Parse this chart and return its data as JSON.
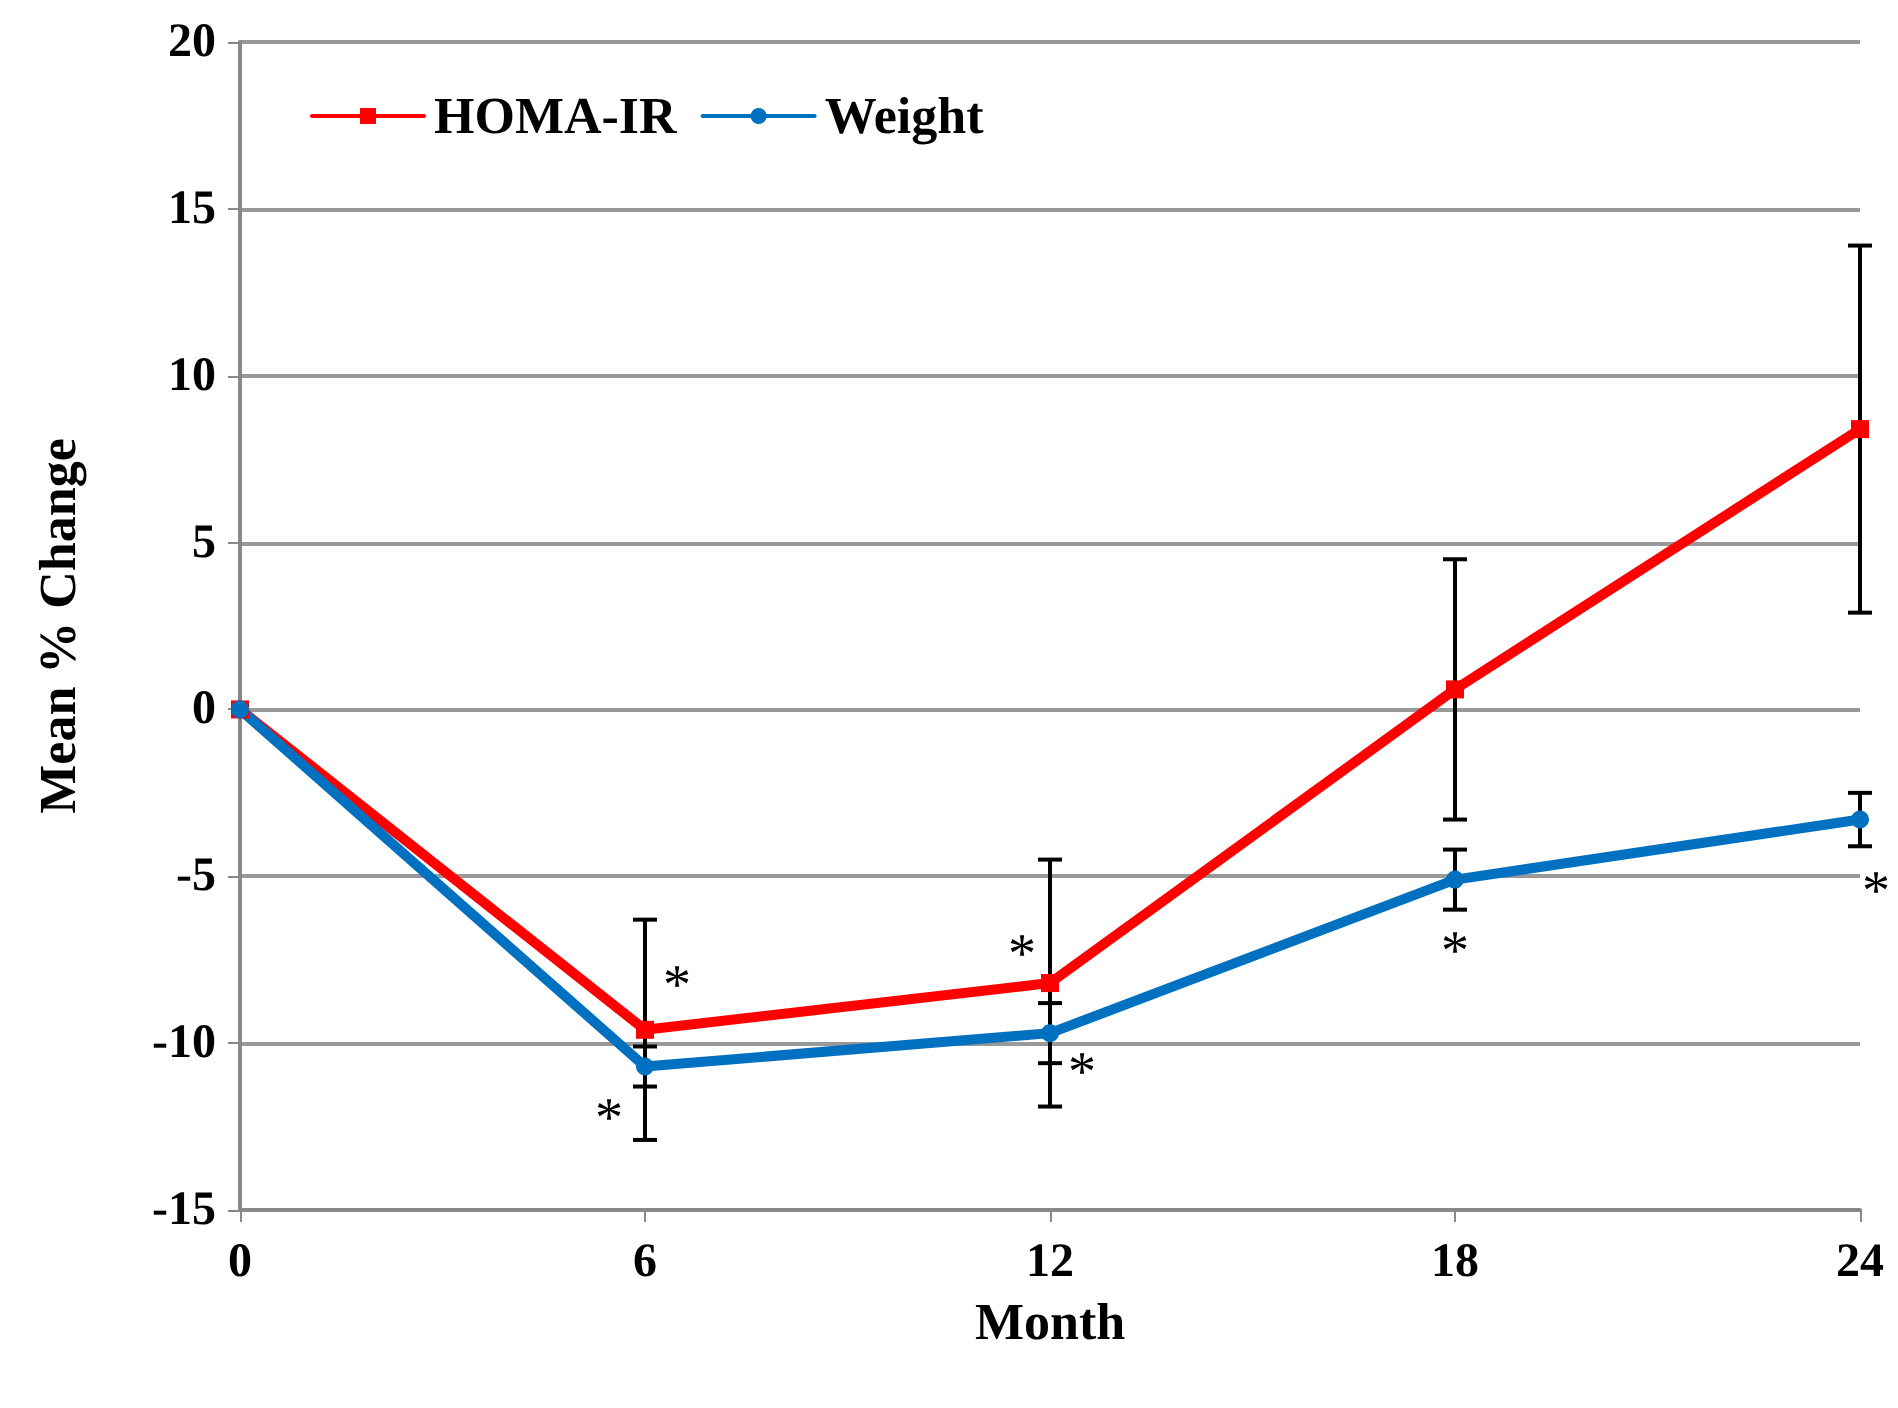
{
  "chart_data": {
    "type": "line",
    "xlabel": "Month",
    "ylabel": "Mean % Change",
    "x": [
      0,
      6,
      12,
      18,
      24
    ],
    "xlim": [
      0,
      24
    ],
    "xticks": [
      0,
      6,
      12,
      18,
      24
    ],
    "ylim": [
      -15,
      20
    ],
    "yticks": [
      -15,
      -10,
      -5,
      0,
      5,
      10,
      15,
      20
    ],
    "grid": "y",
    "legend": "top left",
    "line_style": "solid",
    "series": [
      {
        "name": "HOMA-IR",
        "color": "#ff0000",
        "marker": "square",
        "values": [
          0,
          -9.6,
          -8.2,
          0.6,
          8.4
        ],
        "errors": [
          null,
          3.3,
          3.7,
          3.9,
          5.5
        ]
      },
      {
        "name": "Weight",
        "color": "#0070c0",
        "marker": "circle",
        "values": [
          0,
          -10.7,
          -9.7,
          -5.1,
          -3.3
        ],
        "errors": [
          null,
          0.6,
          0.9,
          0.9,
          0.8
        ]
      }
    ],
    "annotations": [
      {
        "text": "*",
        "x": 6,
        "y": -9.6
      },
      {
        "text": "*",
        "x": 6,
        "y": -10.7
      },
      {
        "text": "*",
        "x": 12,
        "y": -8.2
      },
      {
        "text": "*",
        "x": 12,
        "y": -9.7
      },
      {
        "text": "*",
        "x": 18,
        "y": -5.1
      },
      {
        "text": "*",
        "x": 24,
        "y": -3.3
      }
    ]
  }
}
